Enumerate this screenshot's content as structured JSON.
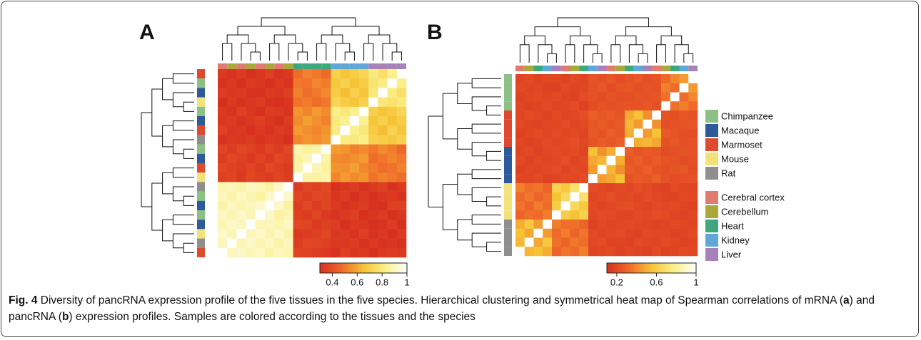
{
  "panels": [
    {
      "label": "A",
      "colorbar": {
        "lim": [
          0.3,
          1
        ],
        "ticks": [
          0.4,
          0.6,
          0.8,
          1
        ]
      },
      "tissues": [
        "Cerebral cortex",
        "Cerebellum",
        "Cerebral cortex",
        "Cerebellum",
        "Cerebral cortex",
        "Cerebellum",
        "Cerebral cortex",
        "Cerebellum",
        "Heart",
        "Heart",
        "Heart",
        "Heart",
        "Kidney",
        "Kidney",
        "Kidney",
        "Kidney",
        "Liver",
        "Liver",
        "Liver",
        "Liver"
      ],
      "species": [
        "Marmoset",
        "Rat",
        "Mouse",
        "Macaque",
        "Chimpanzee",
        "Macaque",
        "Chimpanzee",
        "Rat",
        "Mouse",
        "Marmoset",
        "Macaque",
        "Chimpanzee",
        "Rat",
        "Marmoset",
        "Macaque",
        "Chimpanzee",
        "Mouse",
        "Macaque",
        "Chimpanzee",
        "Marmoset"
      ],
      "matrix": [
        [
          0.33,
          0.31,
          0.34,
          0.3,
          0.32,
          0.35,
          0.31,
          0.33,
          0.48,
          0.52,
          0.5,
          0.47,
          0.7,
          0.66,
          0.69,
          0.72,
          0.8,
          0.76,
          0.82,
          1
        ],
        [
          0.31,
          0.33,
          0.3,
          0.34,
          0.32,
          0.3,
          0.33,
          0.31,
          0.5,
          0.49,
          0.53,
          0.51,
          0.67,
          0.71,
          0.65,
          0.68,
          0.77,
          0.81,
          1,
          0.82
        ],
        [
          0.34,
          0.32,
          0.33,
          0.31,
          0.3,
          0.33,
          0.32,
          0.35,
          0.52,
          0.48,
          0.5,
          0.54,
          0.69,
          0.64,
          0.7,
          0.66,
          0.79,
          1,
          0.81,
          0.76
        ],
        [
          0.3,
          0.33,
          0.31,
          0.32,
          0.34,
          0.31,
          0.3,
          0.32,
          0.49,
          0.51,
          0.48,
          0.5,
          0.72,
          0.68,
          0.66,
          0.7,
          1,
          0.79,
          0.77,
          0.8
        ],
        [
          0.33,
          0.31,
          0.35,
          0.32,
          0.3,
          0.34,
          0.33,
          0.31,
          0.56,
          0.53,
          0.57,
          0.54,
          0.82,
          0.79,
          0.84,
          1,
          0.7,
          0.66,
          0.68,
          0.72
        ],
        [
          0.32,
          0.34,
          0.31,
          0.33,
          0.35,
          0.32,
          0.3,
          0.34,
          0.54,
          0.58,
          0.55,
          0.52,
          0.8,
          0.83,
          1,
          0.84,
          0.66,
          0.7,
          0.65,
          0.69
        ],
        [
          0.35,
          0.32,
          0.33,
          0.3,
          0.33,
          0.31,
          0.34,
          0.32,
          0.57,
          0.55,
          0.53,
          0.56,
          0.81,
          1,
          0.83,
          0.79,
          0.68,
          0.64,
          0.71,
          0.66
        ],
        [
          0.31,
          0.33,
          0.32,
          0.34,
          0.31,
          0.33,
          0.32,
          0.3,
          0.53,
          0.56,
          0.54,
          0.57,
          1,
          0.81,
          0.8,
          0.82,
          0.7,
          0.69,
          0.67,
          0.7
        ],
        [
          0.36,
          0.34,
          0.37,
          0.35,
          0.33,
          0.36,
          0.34,
          0.37,
          0.88,
          0.85,
          0.87,
          1,
          0.57,
          0.56,
          0.52,
          0.54,
          0.5,
          0.54,
          0.51,
          0.47
        ],
        [
          0.34,
          0.37,
          0.35,
          0.33,
          0.36,
          0.34,
          0.37,
          0.35,
          0.86,
          0.89,
          1,
          0.87,
          0.54,
          0.53,
          0.55,
          0.57,
          0.48,
          0.5,
          0.53,
          0.5
        ],
        [
          0.37,
          0.35,
          0.34,
          0.36,
          0.34,
          0.37,
          0.35,
          0.33,
          0.87,
          1,
          0.89,
          0.85,
          0.56,
          0.55,
          0.58,
          0.53,
          0.51,
          0.48,
          0.49,
          0.52
        ],
        [
          0.35,
          0.36,
          0.33,
          0.37,
          0.35,
          0.34,
          0.36,
          0.34,
          1,
          0.87,
          0.86,
          0.88,
          0.53,
          0.57,
          0.54,
          0.56,
          0.49,
          0.52,
          0.5,
          0.48
        ],
        [
          0.88,
          0.9,
          0.87,
          0.91,
          0.89,
          0.86,
          0.92,
          1,
          0.34,
          0.36,
          0.35,
          0.37,
          0.3,
          0.32,
          0.34,
          0.31,
          0.33,
          0.35,
          0.31,
          0.33
        ],
        [
          0.9,
          0.87,
          0.91,
          0.88,
          0.86,
          0.92,
          1,
          0.92,
          0.36,
          0.34,
          0.37,
          0.36,
          0.32,
          0.34,
          0.3,
          0.33,
          0.3,
          0.32,
          0.33,
          0.31
        ],
        [
          0.87,
          0.91,
          0.88,
          0.9,
          0.92,
          1,
          0.92,
          0.86,
          0.34,
          0.37,
          0.34,
          0.36,
          0.33,
          0.31,
          0.32,
          0.34,
          0.31,
          0.3,
          0.35,
          0.35
        ],
        [
          0.91,
          0.88,
          0.92,
          0.89,
          1,
          0.92,
          0.86,
          0.89,
          0.35,
          0.34,
          0.36,
          0.33,
          0.31,
          0.33,
          0.35,
          0.3,
          0.32,
          0.34,
          0.3,
          0.32
        ],
        [
          0.89,
          0.92,
          0.9,
          1,
          0.89,
          0.9,
          0.88,
          0.91,
          0.37,
          0.36,
          0.33,
          0.35,
          0.34,
          0.3,
          0.33,
          0.32,
          0.3,
          0.31,
          0.34,
          0.3
        ],
        [
          0.92,
          0.89,
          1,
          0.9,
          0.92,
          0.88,
          0.91,
          0.87,
          0.33,
          0.34,
          0.35,
          0.37,
          0.32,
          0.33,
          0.31,
          0.35,
          0.31,
          0.33,
          0.3,
          0.33
        ],
        [
          0.9,
          1,
          0.89,
          0.92,
          0.88,
          0.91,
          0.87,
          0.9,
          0.34,
          0.37,
          0.36,
          0.35,
          0.33,
          0.32,
          0.34,
          0.31,
          0.33,
          0.31,
          0.32,
          0.3
        ],
        [
          1,
          0.9,
          0.92,
          0.89,
          0.91,
          0.87,
          0.9,
          0.88,
          0.36,
          0.35,
          0.34,
          0.33,
          0.31,
          0.35,
          0.32,
          0.33,
          0.3,
          0.33,
          0.34,
          0.33
        ]
      ]
    },
    {
      "label": "B",
      "colorbar": {
        "lim": [
          0.1,
          1
        ],
        "ticks": [
          0.2,
          0.6,
          1
        ]
      },
      "tissues": [
        "Cerebral cortex",
        "Cerebellum",
        "Heart",
        "Kidney",
        "Liver",
        "Cerebral cortex",
        "Cerebellum",
        "Heart",
        "Kidney",
        "Liver",
        "Cerebral cortex",
        "Cerebellum",
        "Heart",
        "Kidney",
        "Liver",
        "Cerebral cortex",
        "Cerebellum",
        "Heart",
        "Kidney",
        "Liver"
      ],
      "species": [
        "Rat",
        "Rat",
        "Rat",
        "Rat",
        "Mouse",
        "Mouse",
        "Mouse",
        "Mouse",
        "Macaque",
        "Macaque",
        "Macaque",
        "Macaque",
        "Marmoset",
        "Marmoset",
        "Marmoset",
        "Marmoset",
        "Chimpanzee",
        "Chimpanzee",
        "Chimpanzee",
        "Chimpanzee"
      ],
      "matrix": [
        [
          0.18,
          0.2,
          0.17,
          0.19,
          0.19,
          0.17,
          0.2,
          0.18,
          0.24,
          0.22,
          0.25,
          0.21,
          0.23,
          0.26,
          0.22,
          0.24,
          0.32,
          0.4,
          0.45,
          1
        ],
        [
          0.2,
          0.18,
          0.19,
          0.17,
          0.17,
          0.2,
          0.18,
          0.19,
          0.22,
          0.25,
          0.21,
          0.24,
          0.25,
          0.22,
          0.24,
          0.23,
          0.38,
          0.33,
          1,
          0.45
        ],
        [
          0.17,
          0.19,
          0.2,
          0.18,
          0.2,
          0.18,
          0.17,
          0.21,
          0.23,
          0.21,
          0.24,
          0.22,
          0.22,
          0.24,
          0.23,
          0.25,
          0.34,
          1,
          0.33,
          0.4
        ],
        [
          0.19,
          0.17,
          0.18,
          0.2,
          0.18,
          0.19,
          0.21,
          0.17,
          0.21,
          0.24,
          0.22,
          0.23,
          0.24,
          0.23,
          0.25,
          0.22,
          1,
          0.34,
          0.38,
          0.32
        ],
        [
          0.18,
          0.21,
          0.19,
          0.17,
          0.2,
          0.18,
          0.19,
          0.22,
          0.28,
          0.25,
          0.27,
          0.24,
          0.48,
          0.55,
          0.42,
          1,
          0.24,
          0.22,
          0.25,
          0.23
        ],
        [
          0.2,
          0.18,
          0.17,
          0.19,
          0.19,
          0.21,
          0.18,
          0.2,
          0.25,
          0.27,
          0.24,
          0.26,
          0.52,
          0.45,
          1,
          0.42,
          0.22,
          0.23,
          0.24,
          0.25
        ],
        [
          0.17,
          0.19,
          0.2,
          0.18,
          0.21,
          0.19,
          0.2,
          0.18,
          0.26,
          0.24,
          0.28,
          0.25,
          0.5,
          1,
          0.45,
          0.55,
          0.26,
          0.24,
          0.22,
          0.22
        ],
        [
          0.19,
          0.17,
          0.18,
          0.2,
          0.18,
          0.2,
          0.22,
          0.19,
          0.24,
          0.27,
          0.25,
          0.28,
          1,
          0.5,
          0.52,
          0.48,
          0.23,
          0.25,
          0.22,
          0.24
        ],
        [
          0.18,
          0.2,
          0.17,
          0.19,
          0.2,
          0.19,
          0.21,
          0.18,
          0.55,
          0.42,
          0.5,
          1,
          0.28,
          0.24,
          0.26,
          0.25,
          0.21,
          0.22,
          0.24,
          0.23
        ],
        [
          0.2,
          0.17,
          0.19,
          0.18,
          0.19,
          0.22,
          0.18,
          0.2,
          0.48,
          0.52,
          1,
          0.5,
          0.25,
          0.28,
          0.24,
          0.27,
          0.24,
          0.23,
          0.21,
          0.22
        ],
        [
          0.17,
          0.19,
          0.18,
          0.2,
          0.21,
          0.18,
          0.2,
          0.19,
          0.45,
          1,
          0.52,
          0.42,
          0.27,
          0.25,
          0.28,
          0.24,
          0.22,
          0.24,
          0.25,
          0.21
        ],
        [
          0.19,
          0.18,
          0.2,
          0.17,
          0.18,
          0.2,
          0.19,
          0.21,
          1,
          0.45,
          0.48,
          0.55,
          0.24,
          0.26,
          0.25,
          0.28,
          0.23,
          0.21,
          0.22,
          0.24
        ],
        [
          0.38,
          0.33,
          0.35,
          0.3,
          0.62,
          0.58,
          0.7,
          1,
          0.21,
          0.19,
          0.18,
          0.2,
          0.19,
          0.22,
          0.2,
          0.18,
          0.17,
          0.21,
          0.19,
          0.18
        ],
        [
          0.32,
          0.36,
          0.3,
          0.34,
          0.55,
          0.65,
          1,
          0.7,
          0.18,
          0.2,
          0.22,
          0.19,
          0.2,
          0.18,
          0.21,
          0.19,
          0.18,
          0.17,
          0.2,
          0.19
        ],
        [
          0.35,
          0.3,
          0.37,
          0.33,
          0.6,
          1,
          0.65,
          0.58,
          0.2,
          0.18,
          0.19,
          0.21,
          0.22,
          0.19,
          0.18,
          0.2,
          0.19,
          0.2,
          0.18,
          0.17
        ],
        [
          0.3,
          0.34,
          0.32,
          0.37,
          1,
          0.6,
          0.55,
          0.62,
          0.19,
          0.21,
          0.2,
          0.18,
          0.18,
          0.2,
          0.19,
          0.21,
          0.2,
          0.18,
          0.17,
          0.19
        ],
        [
          0.5,
          0.58,
          0.45,
          1,
          0.37,
          0.33,
          0.34,
          0.3,
          0.17,
          0.2,
          0.18,
          0.19,
          0.2,
          0.19,
          0.18,
          0.17,
          0.18,
          0.2,
          0.19,
          0.18
        ],
        [
          0.55,
          0.48,
          1,
          0.45,
          0.32,
          0.37,
          0.3,
          0.35,
          0.2,
          0.18,
          0.19,
          0.21,
          0.18,
          0.17,
          0.2,
          0.19,
          0.19,
          0.17,
          0.18,
          0.2
        ],
        [
          0.52,
          1,
          0.48,
          0.58,
          0.34,
          0.3,
          0.36,
          0.33,
          0.19,
          0.21,
          0.17,
          0.18,
          0.17,
          0.2,
          0.19,
          0.18,
          0.2,
          0.19,
          0.17,
          0.18
        ],
        [
          1,
          0.52,
          0.55,
          0.5,
          0.3,
          0.35,
          0.32,
          0.38,
          0.18,
          0.19,
          0.2,
          0.17,
          0.19,
          0.18,
          0.17,
          0.2,
          0.17,
          0.18,
          0.2,
          0.19
        ]
      ]
    }
  ],
  "colormap": [
    "#d7301f",
    "#ef6a2a",
    "#f6c335",
    "#faf08a",
    "#ffffff"
  ],
  "legend": {
    "species": [
      {
        "name": "Chimpanzee",
        "color": "#8cc084"
      },
      {
        "name": "Macaque",
        "color": "#2e5a9c"
      },
      {
        "name": "Marmoset",
        "color": "#de4a2e"
      },
      {
        "name": "Mouse",
        "color": "#f2e27a"
      },
      {
        "name": "Rat",
        "color": "#8e8e8e"
      }
    ],
    "tissues": [
      {
        "name": "Cerebral cortex",
        "color": "#e07b72"
      },
      {
        "name": "Cerebellum",
        "color": "#a9a838"
      },
      {
        "name": "Heart",
        "color": "#3fa77d"
      },
      {
        "name": "Kidney",
        "color": "#5ea7d6"
      },
      {
        "name": "Liver",
        "color": "#a682b8"
      }
    ]
  },
  "caption": {
    "label": "Fig. 4",
    "parts": [
      {
        "text": " Diversity of pancRNA expression profile of the five tissues in the five species. Hierarchical clustering and symmetrical heat map of Spearman correlations of mRNA ("
      },
      {
        "text": "a",
        "bold": true
      },
      {
        "text": ") and pancRNA ("
      },
      {
        "text": "b",
        "bold": true
      },
      {
        "text": ") expression profiles. Samples are colored according to the tissues and the species"
      }
    ]
  }
}
